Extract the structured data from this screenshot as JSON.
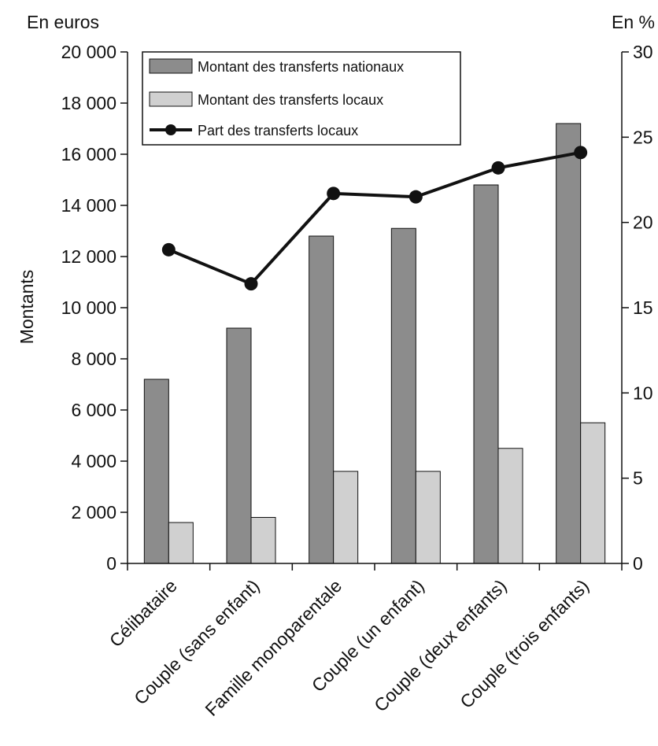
{
  "chart_data": {
    "type": "bar",
    "categories": [
      "Célibataire",
      "Couple (sans enfant)",
      "Famille monoparentale",
      "Couple (un enfant)",
      "Couple (deux enfants)",
      "Couple (trois enfants)"
    ],
    "series": [
      {
        "name": "Montant des transferts nationaux",
        "type": "bar",
        "axis": "left",
        "color": "#8c8c8c",
        "values": [
          7200,
          9200,
          12800,
          13100,
          14800,
          17200
        ]
      },
      {
        "name": "Montant des transferts locaux",
        "type": "bar",
        "axis": "left",
        "color": "#d0d0d0",
        "values": [
          1600,
          1800,
          3600,
          3600,
          4500,
          5500
        ]
      },
      {
        "name": "Part des transferts locaux",
        "type": "line",
        "axis": "right",
        "color": "#111111",
        "values": [
          18.4,
          16.4,
          21.7,
          21.5,
          23.2,
          24.1
        ]
      }
    ],
    "left_axis": {
      "unit": "En euros",
      "label": "Montants",
      "ylim": [
        0,
        20000
      ],
      "ticks": [
        0,
        2000,
        4000,
        6000,
        8000,
        10000,
        12000,
        14000,
        16000,
        18000,
        20000
      ],
      "tick_labels": [
        "0",
        "2 000",
        "4 000",
        "6 000",
        "8 000",
        "10 000",
        "12 000",
        "14 000",
        "16 000",
        "18 000",
        "20 000"
      ]
    },
    "right_axis": {
      "unit": "En %",
      "ylim": [
        0,
        30
      ],
      "ticks": [
        0,
        5,
        10,
        15,
        20,
        25,
        30
      ],
      "tick_labels": [
        "0",
        "5",
        "10",
        "15",
        "20",
        "25",
        "30"
      ]
    },
    "grid": false,
    "legend_position": "top-left"
  }
}
